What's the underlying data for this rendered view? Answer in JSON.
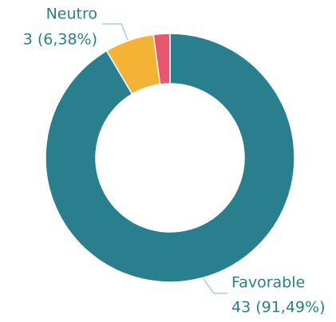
{
  "chart_data": {
    "type": "donut",
    "categories": [
      "Favorable",
      "Neutro",
      null
    ],
    "values": [
      43,
      3,
      1
    ],
    "value_labels": [
      "43 (91,49%)",
      "3 (6,38%)",
      null
    ],
    "colors": [
      "#2a7f8f",
      "#f5b335",
      "#e8566f"
    ]
  }
}
